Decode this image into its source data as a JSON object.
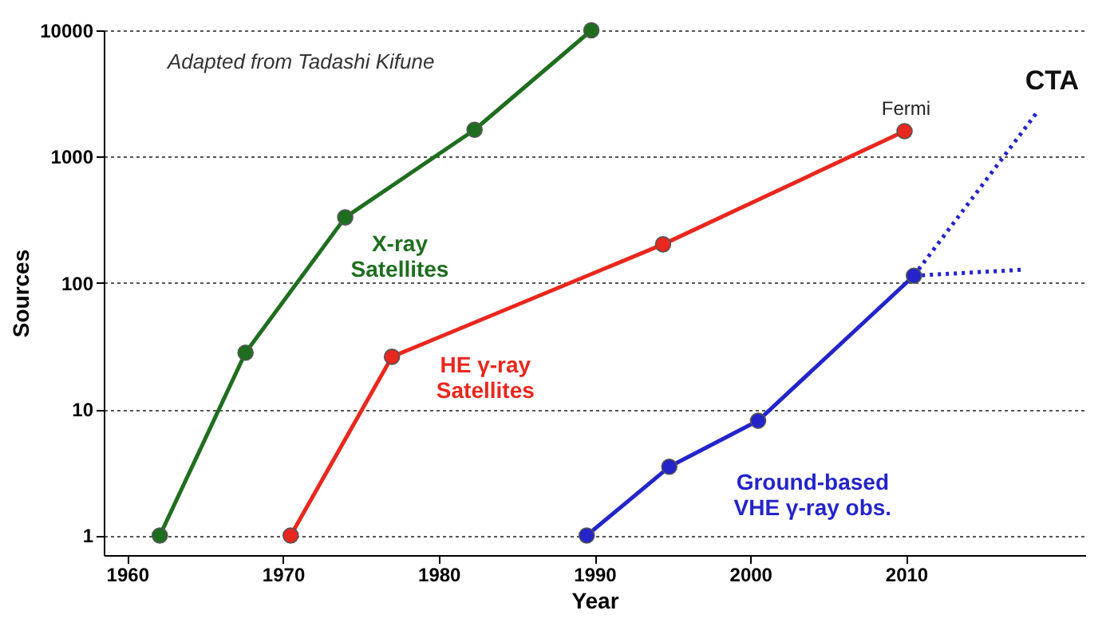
{
  "chart_data": {
    "type": "line",
    "xlabel": "Year",
    "ylabel": "Sources",
    "log": "y",
    "xlim": [
      1958.5,
      2021.5
    ],
    "xticks": [
      1960,
      1970,
      1980,
      1990,
      2000,
      2010
    ],
    "ylim": [
      0.7,
      10000
    ],
    "yticks": [
      1,
      10,
      100,
      1000,
      10000
    ],
    "grid": "y",
    "marker": "circle",
    "series": [
      {
        "name": "X-ray Satellites",
        "color": "#1f6e1f",
        "x": [
          1962.1,
          1967.6,
          1974.0,
          1982.3,
          1989.8
        ],
        "values": [
          1,
          28,
          330,
          1630,
          10000
        ]
      },
      {
        "name": "HE γ-ray Satellites",
        "color": "#e8281e",
        "x": [
          1970.5,
          1977.0,
          1994.4,
          2009.9
        ],
        "values": [
          1,
          26,
          202,
          1590
        ]
      },
      {
        "name": "Ground-based VHE γ-ray obs.",
        "color": "#2424c8",
        "x": [
          1989.5,
          1994.8,
          2000.5,
          2010.5
        ],
        "values": [
          1,
          3.5,
          8.1,
          114
        ]
      },
      {
        "color": "#2424c8",
        "x": [
          2010.5,
          2018.4
        ],
        "values": [
          114,
          2240
        ],
        "marker": "none",
        "line_style": "dotted"
      },
      {
        "color": "#2424c8",
        "x": [
          2010.5,
          2017.4
        ],
        "values": [
          114,
          127
        ],
        "marker": "none",
        "line_style": "dotted"
      }
    ],
    "annotations": [
      "Adapted from Tadashi Kifune",
      {
        "text": "Fermi",
        "x": 2010,
        "y": 1590
      },
      "CTA"
    ]
  }
}
